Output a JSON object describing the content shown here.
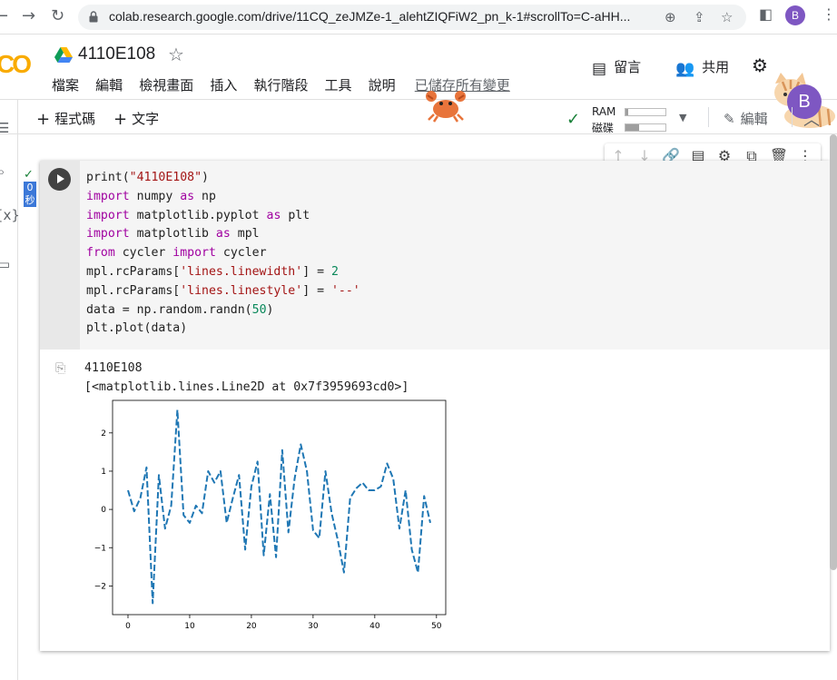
{
  "browser": {
    "url": "colab.research.google.com/drive/11CQ_zeJMZe-1_alehtZIQFiW2_pn_k-1#scrollTo=C-aHH...",
    "profile_initial": "B"
  },
  "header": {
    "logo": "CO",
    "title": "4110E108",
    "menus": [
      "檔案",
      "編輯",
      "檢視畫面",
      "插入",
      "執行階段",
      "工具",
      "說明"
    ],
    "saved_status": "已儲存所有變更",
    "comment_label": "留言",
    "share_label": "共用",
    "avatar_initial": "B"
  },
  "toolbar": {
    "add_code": "程式碼",
    "add_text": "文字",
    "ram_label": "RAM",
    "disk_label": "磁碟",
    "ram_usage": 0.06,
    "disk_usage": 0.35,
    "edit_label": "編輯"
  },
  "cell": {
    "exec_time": "0 秒",
    "code_lines": [
      "print(\"4110E108\")",
      "import numpy as np",
      "import matplotlib.pyplot as plt",
      "import matplotlib as mpl",
      "from cycler import cycler",
      "mpl.rcParams['lines.linewidth'] = 2",
      "mpl.rcParams['lines.linestyle'] = '--'",
      "data = np.random.randn(50)",
      "plt.plot(data)"
    ],
    "output_lines": [
      "4110E108",
      "[<matplotlib.lines.Line2D at 0x7f3959693cd0>]"
    ]
  },
  "chart_data": {
    "type": "line",
    "linestyle": "dashed",
    "color": "#1f77b4",
    "x": [
      0,
      1,
      2,
      3,
      4,
      5,
      6,
      7,
      8,
      9,
      10,
      11,
      12,
      13,
      14,
      15,
      16,
      17,
      18,
      19,
      20,
      21,
      22,
      23,
      24,
      25,
      26,
      27,
      28,
      29,
      30,
      31,
      32,
      33,
      34,
      35,
      36,
      37,
      38,
      39,
      40,
      41,
      42,
      43,
      44,
      45,
      46,
      47,
      48,
      49
    ],
    "values": [
      0.5,
      -0.05,
      0.3,
      1.1,
      -2.45,
      0.9,
      -0.5,
      0.1,
      2.6,
      -0.15,
      -0.35,
      0.1,
      -0.1,
      1.0,
      0.7,
      1.0,
      -0.35,
      0.3,
      0.9,
      -1.05,
      0.6,
      1.25,
      -1.2,
      0.4,
      -1.25,
      1.55,
      -0.6,
      0.8,
      1.7,
      1.0,
      -0.55,
      -0.75,
      1.0,
      -0.1,
      -0.8,
      -1.65,
      0.3,
      0.55,
      0.7,
      0.5,
      0.5,
      0.6,
      1.2,
      0.8,
      -0.5,
      0.5,
      -1.05,
      -1.65,
      0.35,
      -0.35
    ],
    "xlim": [
      -2.5,
      51.5
    ],
    "ylim": [
      -2.75,
      2.85
    ],
    "xticks": [
      "0",
      "10",
      "20",
      "30",
      "40",
      "50"
    ],
    "yticks": [
      "2",
      "1",
      "0",
      "−1",
      "−2"
    ]
  }
}
